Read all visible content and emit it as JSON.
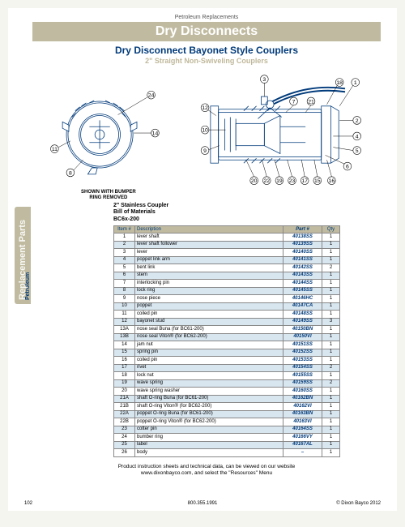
{
  "header": {
    "category": "Petroleum Replacements",
    "banner": "Dry Disconnects",
    "title": "Dry Disconnect Bayonet Style Couplers",
    "subtitle": "2\" Straight Non-Swiveling Couplers"
  },
  "diagram": {
    "caption_line1": "SHOWN WITH BUMPER",
    "caption_line2": "RING REMOVED",
    "callouts_left": [
      "24",
      "14",
      "11",
      "8"
    ],
    "callouts_top": [
      "3",
      "18",
      "1"
    ],
    "callouts_right": [
      "7",
      "21",
      "2",
      "4",
      "5",
      "6"
    ],
    "callouts_mid": [
      "12",
      "10",
      "9"
    ],
    "callouts_bottom": [
      "20",
      "22",
      "19",
      "23",
      "17",
      "15",
      "16"
    ]
  },
  "side_tab": {
    "small": "Petroleum",
    "large": "Replacement Parts"
  },
  "bom": {
    "heading_line1": "2\" Stainless Coupler",
    "heading_line2": "Bill of Materials",
    "heading_line3": "BC6x-200",
    "columns": [
      "Item #",
      "Description",
      "Part #",
      "Qty"
    ],
    "rows": [
      [
        "1",
        "lever shaft",
        "40138SS",
        "1"
      ],
      [
        "2",
        "lever shaft follower",
        "40139SS",
        "1"
      ],
      [
        "3",
        "lever",
        "40140SS",
        "1"
      ],
      [
        "4",
        "poppet link arm",
        "40141SS",
        "1"
      ],
      [
        "5",
        "bent link",
        "40142SS",
        "2"
      ],
      [
        "6",
        "stem",
        "40143SS",
        "1"
      ],
      [
        "7",
        "interlocking pin",
        "40144SS",
        "1"
      ],
      [
        "8",
        "lock ring",
        "40145SS",
        "1"
      ],
      [
        "9",
        "nose piece",
        "40146HC",
        "1"
      ],
      [
        "10",
        "poppet",
        "40147CA",
        "1"
      ],
      [
        "11",
        "coiled pin",
        "40148SS",
        "1"
      ],
      [
        "12",
        "bayonet stud",
        "40149SS",
        "3"
      ],
      [
        "13A",
        "nose seal Buna (for BC61-200)",
        "40150BN",
        "1"
      ],
      [
        "13B",
        "nose seal Viton® (for BC62-200)",
        "40150VI",
        "1"
      ],
      [
        "14",
        "jam nut",
        "40151SS",
        "1"
      ],
      [
        "15",
        "spring pin",
        "40152SS",
        "1"
      ],
      [
        "16",
        "coiled pin",
        "40153SS",
        "1"
      ],
      [
        "17",
        "rivet",
        "40154SS",
        "2"
      ],
      [
        "18",
        "lock nut",
        "40155SS",
        "1"
      ],
      [
        "19",
        "wave spring",
        "40159SS",
        "2"
      ],
      [
        "20",
        "wave spring washer",
        "40160SS",
        "1"
      ],
      [
        "21A",
        "shaft O-ring Buna (for BC61-200)",
        "40162BN",
        "1"
      ],
      [
        "21B",
        "shaft O-ring Viton® (for BC62-200)",
        "40162VI",
        "1"
      ],
      [
        "22A",
        "poppet O-ring Buna (for BC61-200)",
        "40163BN",
        "1"
      ],
      [
        "22B",
        "poppet O-ring Viton® (for BC62-200)",
        "40163VI",
        "1"
      ],
      [
        "23",
        "cotter pin",
        "40164SS",
        "1"
      ],
      [
        "24",
        "bumber ring",
        "40166VY",
        "1"
      ],
      [
        "25",
        "label",
        "40167AL",
        "1"
      ],
      [
        "26",
        "body",
        "–",
        "1"
      ]
    ]
  },
  "footer": {
    "note_line1": "Product instruction sheets and technical data, can be viewed on our website",
    "note_line2": "www.dixonbayco.com, and select the \"Resources\" Menu",
    "page": "102",
    "phone": "800.355.1991",
    "copyright": "© Dixon Bayco 2012"
  },
  "style": {
    "banner_bg": "#c0bba0",
    "accent": "#003a7a",
    "row_alt": "#d8e6f0"
  }
}
